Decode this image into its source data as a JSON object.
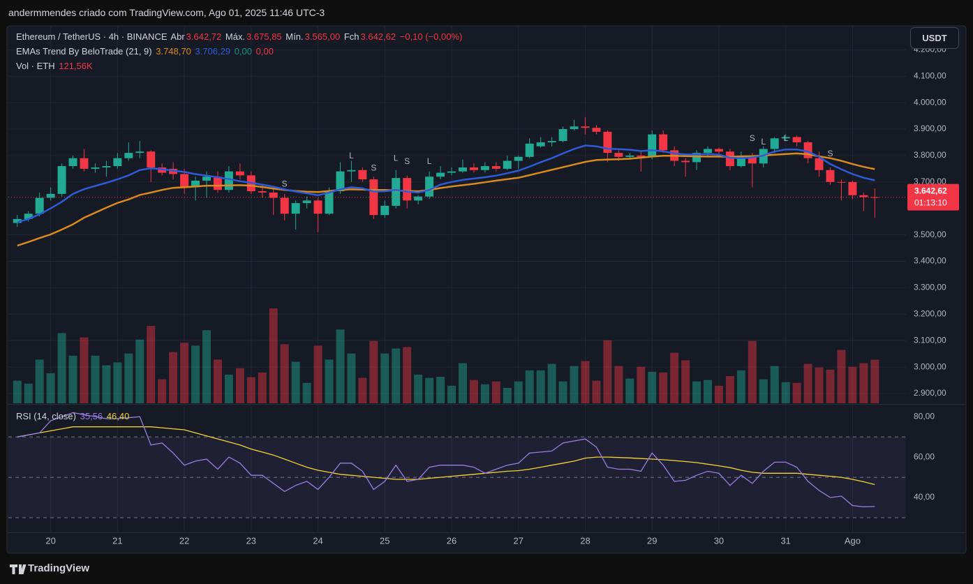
{
  "chart_data": {
    "type": "candlestick",
    "watermark_text": "andermmendes criado com TradingView.com, Ago 01, 2025 11:46 UTC-3",
    "brand": "TradingView",
    "currency_button": "USDT",
    "title": "Ethereum / TetherUS · 4h · BINANCE",
    "ohlc_names": [
      "Abr",
      "Máx.",
      "Mín.",
      "Fch"
    ],
    "last_value_labels": [
      "3.642,72",
      "3.675,85",
      "3.565,00",
      "3.642,62"
    ],
    "change_label": "−0,10 (−0,00%)",
    "countdown": "01:13:10",
    "up_color": "#22ab94",
    "down_color": "#f23645",
    "open": [
      3545,
      3560,
      3580,
      3640,
      3655,
      3760,
      3790,
      3750,
      3755,
      3760,
      3790,
      3810,
      3815,
      3755,
      3750,
      3730,
      3680,
      3705,
      3720,
      3670,
      3740,
      3725,
      3665,
      3660,
      3640,
      3580,
      3620,
      3630,
      3580,
      3665,
      3740,
      3745,
      3710,
      3575,
      3610,
      3715,
      3630,
      3645,
      3720,
      3735,
      3740,
      3755,
      3745,
      3760,
      3750,
      3780,
      3795,
      3835,
      3850,
      3855,
      3900,
      3910,
      3905,
      3890,
      3810,
      3795,
      3800,
      3795,
      3880,
      3820,
      3780,
      3775,
      3810,
      3825,
      3815,
      3760,
      3800,
      3770,
      3825,
      3865,
      3870,
      3850,
      3790,
      3745,
      3700,
      3700,
      3650,
      3642.72
    ],
    "high": [
      3575,
      3590,
      3660,
      3680,
      3770,
      3800,
      3825,
      3770,
      3780,
      3810,
      3850,
      3855,
      3820,
      3770,
      3775,
      3750,
      3720,
      3740,
      3740,
      3760,
      3770,
      3740,
      3690,
      3675,
      3655,
      3630,
      3645,
      3640,
      3680,
      3775,
      3780,
      3755,
      3720,
      3630,
      3745,
      3725,
      3650,
      3740,
      3760,
      3755,
      3785,
      3770,
      3775,
      3775,
      3800,
      3800,
      3865,
      3870,
      3870,
      3910,
      3935,
      3945,
      3915,
      3895,
      3820,
      3810,
      3815,
      3895,
      3895,
      3835,
      3790,
      3820,
      3835,
      3830,
      3825,
      3815,
      3810,
      3835,
      3870,
      3880,
      3875,
      3855,
      3815,
      3755,
      3710,
      3705,
      3660,
      3675.85
    ],
    "low": [
      3530,
      3550,
      3570,
      3630,
      3645,
      3750,
      3740,
      3735,
      3720,
      3750,
      3780,
      3790,
      3700,
      3725,
      3710,
      3655,
      3630,
      3640,
      3660,
      3660,
      3710,
      3655,
      3640,
      3575,
      3555,
      3520,
      3600,
      3510,
      3575,
      3655,
      3700,
      3700,
      3560,
      3565,
      3600,
      3600,
      3615,
      3635,
      3710,
      3725,
      3735,
      3735,
      3735,
      3740,
      3745,
      3750,
      3790,
      3830,
      3835,
      3850,
      3895,
      3880,
      3880,
      3775,
      3780,
      3785,
      3740,
      3785,
      3810,
      3760,
      3720,
      3745,
      3795,
      3805,
      3745,
      3755,
      3680,
      3755,
      3810,
      3855,
      3835,
      3770,
      3720,
      3690,
      3630,
      3635,
      3590,
      3565
    ],
    "close": [
      3560,
      3580,
      3640,
      3655,
      3760,
      3790,
      3750,
      3755,
      3760,
      3790,
      3810,
      3815,
      3755,
      3735,
      3730,
      3680,
      3705,
      3720,
      3670,
      3740,
      3725,
      3665,
      3660,
      3640,
      3580,
      3620,
      3630,
      3580,
      3665,
      3740,
      3745,
      3710,
      3575,
      3610,
      3715,
      3630,
      3645,
      3720,
      3735,
      3740,
      3755,
      3745,
      3760,
      3750,
      3780,
      3795,
      3845,
      3850,
      3855,
      3900,
      3910,
      3905,
      3890,
      3810,
      3795,
      3800,
      3795,
      3880,
      3820,
      3780,
      3775,
      3810,
      3825,
      3815,
      3760,
      3800,
      3770,
      3825,
      3865,
      3870,
      3850,
      3790,
      3745,
      3700,
      3698,
      3650,
      3642.72,
      3642.62
    ],
    "xlim": [
      -0.8,
      79.8
    ],
    "xticks": [
      {
        "value": 3,
        "label": "20"
      },
      {
        "value": 9,
        "label": "21"
      },
      {
        "value": 15,
        "label": "22"
      },
      {
        "value": 21,
        "label": "23"
      },
      {
        "value": 27,
        "label": "24"
      },
      {
        "value": 33,
        "label": "25"
      },
      {
        "value": 39,
        "label": "26"
      },
      {
        "value": 45,
        "label": "27"
      },
      {
        "value": 51,
        "label": "28"
      },
      {
        "value": 57,
        "label": "29"
      },
      {
        "value": 63,
        "label": "30"
      },
      {
        "value": 69,
        "label": "31"
      },
      {
        "value": 75,
        "label": "Ago"
      }
    ],
    "ylim": [
      2863,
      4288
    ],
    "yticks": [
      {
        "value": 2900,
        "label": "2.900,00"
      },
      {
        "value": 3000,
        "label": "3.000,00"
      },
      {
        "value": 3100,
        "label": "3.100,00"
      },
      {
        "value": 3200,
        "label": "3.200,00"
      },
      {
        "value": 3300,
        "label": "3.300,00"
      },
      {
        "value": 3400,
        "label": "3.400,00"
      },
      {
        "value": 3500,
        "label": "3.500,00"
      },
      {
        "value": 3700,
        "label": "3.700,00"
      },
      {
        "value": 3800,
        "label": "3.800,00"
      },
      {
        "value": 3900,
        "label": "3.900,00"
      },
      {
        "value": 4000,
        "label": "4.000,00"
      },
      {
        "value": 4100,
        "label": "4.100,00"
      },
      {
        "value": 4200,
        "label": "4.200,00"
      }
    ],
    "grid": true,
    "ema": {
      "name": "EMAs Trend By BeloTrade (21, 9)",
      "series": [
        {
          "color": "#d98a1e",
          "value_label": "3.748,70",
          "values": [
            3459,
            3473,
            3488,
            3502,
            3520,
            3540,
            3565,
            3584,
            3603,
            3621,
            3634,
            3651,
            3660,
            3670,
            3678,
            3680,
            3683,
            3686,
            3686,
            3687,
            3688,
            3686,
            3681,
            3675,
            3670,
            3666,
            3663,
            3662,
            3666,
            3670,
            3672,
            3671,
            3670,
            3670,
            3668,
            3666,
            3665,
            3670,
            3677,
            3683,
            3688,
            3693,
            3699,
            3705,
            3711,
            3716,
            3726,
            3736,
            3746,
            3756,
            3766,
            3776,
            3783,
            3785,
            3786,
            3788,
            3792,
            3796,
            3799,
            3799,
            3798,
            3797,
            3796,
            3796,
            3795,
            3797,
            3798,
            3800,
            3803,
            3806,
            3808,
            3805,
            3797,
            3790,
            3780,
            3768,
            3757,
            3748.7
          ]
        },
        {
          "color": "#2e5bd8",
          "value_label": "3.706,29",
          "values": [
            3548,
            3560,
            3578,
            3600,
            3625,
            3655,
            3673,
            3685,
            3697,
            3710,
            3725,
            3745,
            3752,
            3748,
            3743,
            3738,
            3730,
            3724,
            3718,
            3711,
            3703,
            3697,
            3690,
            3682,
            3672,
            3664,
            3657,
            3650,
            3660,
            3672,
            3680,
            3676,
            3664,
            3665,
            3670,
            3664,
            3660,
            3670,
            3690,
            3700,
            3708,
            3713,
            3718,
            3724,
            3733,
            3743,
            3758,
            3775,
            3790,
            3808,
            3825,
            3838,
            3835,
            3826,
            3824,
            3822,
            3817,
            3820,
            3816,
            3808,
            3804,
            3804,
            3806,
            3803,
            3792,
            3790,
            3793,
            3800,
            3815,
            3823,
            3823,
            3815,
            3795,
            3768,
            3748,
            3730,
            3716,
            3706.29
          ]
        }
      ],
      "trend_values": [
        {
          "value": 0,
          "value_label": "0,00",
          "color": "#089981"
        },
        {
          "value": 0,
          "value_label": "0,00",
          "color": "#f23645"
        }
      ]
    },
    "signals": [
      {
        "text": "S",
        "index": 24,
        "price": 3691,
        "color": "#f23645"
      },
      {
        "text": "L",
        "index": 30,
        "price": 3797,
        "color": "#089981"
      },
      {
        "text": "S",
        "index": 32,
        "price": 3752,
        "color": "#f23645"
      },
      {
        "text": "L",
        "index": 34,
        "price": 3789,
        "color": "#089981"
      },
      {
        "text": "S",
        "index": 35,
        "price": 3776,
        "color": "#f23645"
      },
      {
        "text": "L",
        "index": 37,
        "price": 3776,
        "color": "#089981"
      },
      {
        "text": "S",
        "index": 66,
        "price": 3864,
        "color": "#f23645"
      },
      {
        "text": "L",
        "index": 67,
        "price": 3850,
        "color": "#089981"
      },
      {
        "text": "L",
        "index": 69,
        "price": 3864,
        "color": "#089981"
      },
      {
        "text": "S",
        "index": 73,
        "price": 3805,
        "color": "#f23645"
      }
    ],
    "volume": {
      "name": "Vol · ETH",
      "value_label": "121,56K",
      "vlim": [
        0,
        1052
      ],
      "values": [
        63,
        55,
        122,
        84,
        196,
        133,
        184,
        133,
        106,
        114,
        139,
        178,
        216,
        67,
        143,
        169,
        161,
        204,
        122,
        80,
        98,
        73,
        86,
        265,
        165,
        116,
        57,
        161,
        122,
        206,
        139,
        71,
        174,
        139,
        153,
        157,
        80,
        71,
        74,
        49,
        112,
        65,
        53,
        61,
        43,
        61,
        92,
        92,
        110,
        61,
        104,
        118,
        63,
        176,
        104,
        69,
        102,
        88,
        86,
        141,
        120,
        61,
        65,
        49,
        76,
        92,
        174,
        67,
        104,
        59,
        57,
        110,
        100,
        94,
        149,
        102,
        112,
        121.56
      ]
    },
    "rsi": {
      "name": "RSI (14, close)",
      "ylim": [
        23.1,
        85.6
      ],
      "yticks": [
        {
          "value": 40,
          "label": "40,00"
        },
        {
          "value": 60,
          "label": "60,00"
        },
        {
          "value": 80,
          "label": "80,00"
        }
      ],
      "bands": [
        70,
        50,
        30
      ],
      "series": [
        {
          "color": "#9a7ee0",
          "value_label": "35,56",
          "values": [
            70,
            71,
            72,
            78,
            80,
            82,
            81,
            80,
            79,
            79,
            79.5,
            80,
            66,
            67,
            62,
            56,
            58,
            59,
            54,
            60,
            57,
            51,
            51,
            47,
            43,
            46,
            48,
            44,
            50,
            57,
            57,
            53,
            44,
            48,
            56,
            48,
            49,
            55,
            56,
            56,
            56,
            55,
            52,
            54,
            56,
            57,
            62,
            62.5,
            63,
            67,
            68,
            69,
            65,
            55,
            54,
            54,
            53,
            62,
            56,
            48,
            48.5,
            51,
            53,
            52,
            46,
            51,
            47,
            53,
            57.5,
            57.5,
            55,
            48,
            43.5,
            40,
            40.7,
            36,
            35.4,
            35.56
          ]
        },
        {
          "color": "#f2d531",
          "value_label": "46,40",
          "values": [
            70,
            71,
            72,
            73,
            74,
            75,
            75,
            75,
            75,
            75,
            75,
            75,
            75,
            74.5,
            74,
            73.5,
            72,
            70.5,
            69,
            67.5,
            66,
            64,
            62.5,
            61,
            59,
            57,
            55,
            53.5,
            52.5,
            51.5,
            51,
            50.5,
            50,
            49.5,
            49,
            49,
            49,
            49.5,
            50,
            50.5,
            51,
            51.5,
            52,
            52.5,
            53,
            53.3,
            54,
            55,
            56,
            57,
            58,
            59.5,
            60,
            60,
            59.8,
            59.6,
            59.3,
            59,
            58.7,
            58.3,
            57.8,
            57.3,
            56.5,
            55.7,
            54.8,
            53.5,
            52.5,
            52,
            52,
            52,
            52,
            51.5,
            51,
            50.5,
            50,
            49,
            47.8,
            46.4
          ]
        }
      ]
    }
  }
}
